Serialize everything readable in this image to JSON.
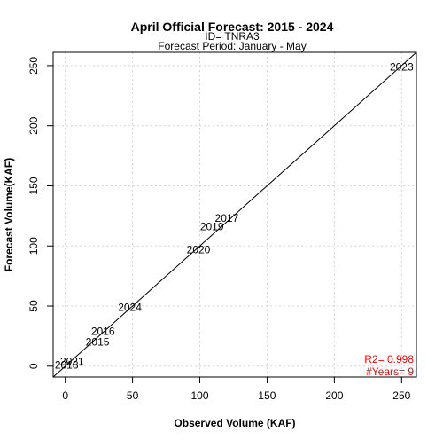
{
  "chart_data": {
    "type": "scatter",
    "title": "April Official Forecast: 2015 - 2024",
    "subtitle_lines": [
      "ID= TNRA3",
      "Forecast Period:  January - May"
    ],
    "xlabel": "Observed Volume (KAF)",
    "ylabel": "Forecast Volume(KAF)",
    "xlim": [
      -9,
      261
    ],
    "ylim": [
      -9,
      261
    ],
    "x_ticks": [
      0,
      50,
      100,
      150,
      200,
      250
    ],
    "y_ticks": [
      0,
      50,
      100,
      150,
      200,
      250
    ],
    "grid": true,
    "reference_line": "1:1",
    "points": [
      {
        "label": "2018",
        "x": 1,
        "y": 1
      },
      {
        "label": "2021",
        "x": 5,
        "y": 4
      },
      {
        "label": "2015",
        "x": 24,
        "y": 20
      },
      {
        "label": "2016",
        "x": 28,
        "y": 29
      },
      {
        "label": "2024",
        "x": 48,
        "y": 49
      },
      {
        "label": "2020",
        "x": 99,
        "y": 97
      },
      {
        "label": "2019",
        "x": 109,
        "y": 116
      },
      {
        "label": "2017",
        "x": 120,
        "y": 123
      },
      {
        "label": "2023",
        "x": 250,
        "y": 249
      }
    ],
    "stats": {
      "r2": "R2=  0.998",
      "years": "#Years=  9",
      "color": "#ff0000"
    }
  }
}
